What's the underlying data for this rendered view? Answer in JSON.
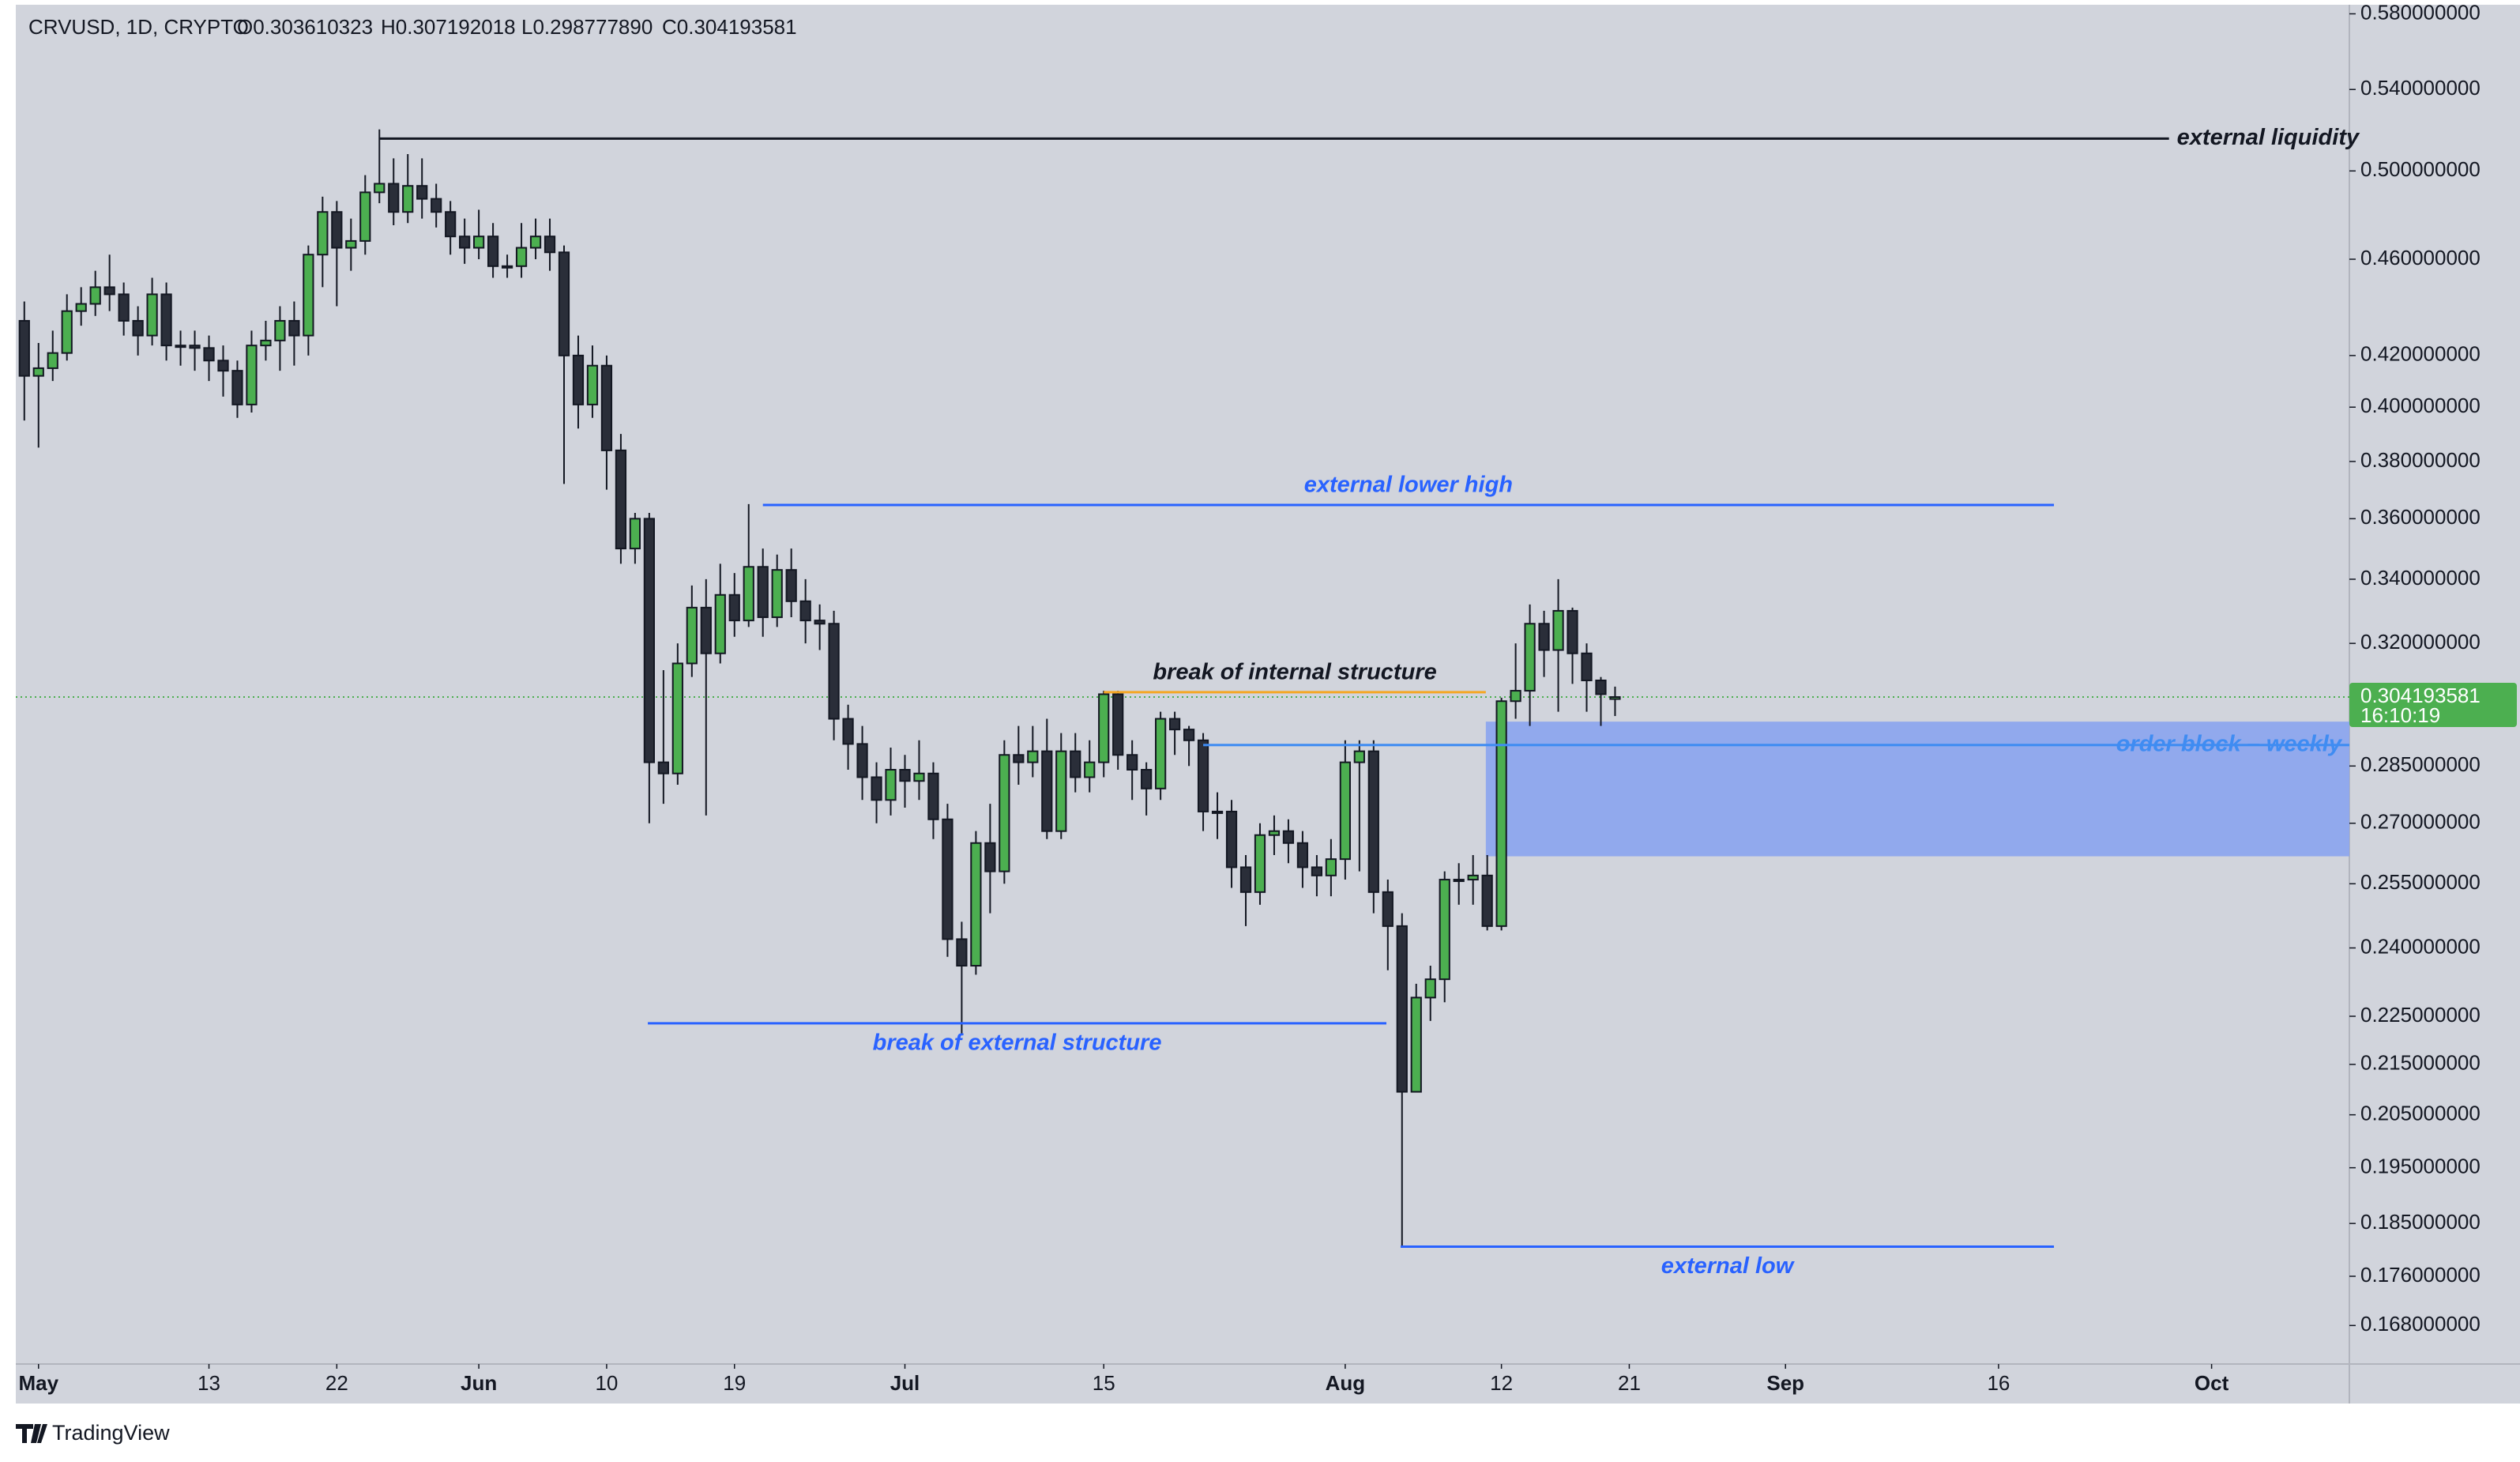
{
  "chart_data": {
    "type": "candlestick",
    "legend": {
      "symbol": "CRVUSD, 1D, CRYPTO",
      "open": "O0.303610323",
      "high": "H0.307192018",
      "low": "L0.298777890",
      "close": "C0.304193581"
    },
    "log_scale": true,
    "grid": false,
    "up_color": "#4caf50",
    "down_color": "#2a2e39",
    "wick_color": "#131722",
    "xlim": [
      -1.6,
      162.7
    ],
    "xticks": [
      {
        "value": 0,
        "label": "May"
      },
      {
        "value": 12,
        "label": "13"
      },
      {
        "value": 21,
        "label": "22"
      },
      {
        "value": 31,
        "label": "Jun"
      },
      {
        "value": 40,
        "label": "10"
      },
      {
        "value": 49,
        "label": "19"
      },
      {
        "value": 61,
        "label": "Jul"
      },
      {
        "value": 75,
        "label": "15"
      },
      {
        "value": 92,
        "label": "Aug"
      },
      {
        "value": 103,
        "label": "12"
      },
      {
        "value": 112,
        "label": "21"
      },
      {
        "value": 123,
        "label": "Sep"
      },
      {
        "value": 138,
        "label": "16"
      },
      {
        "value": 153,
        "label": "Oct"
      }
    ],
    "ylim": [
      0.162,
      0.585
    ],
    "yticks": [
      {
        "value": 0.58,
        "label": "0.580000000"
      },
      {
        "value": 0.54,
        "label": "0.540000000"
      },
      {
        "value": 0.5,
        "label": "0.500000000"
      },
      {
        "value": 0.46,
        "label": "0.460000000"
      },
      {
        "value": 0.42,
        "label": "0.420000000"
      },
      {
        "value": 0.4,
        "label": "0.400000000"
      },
      {
        "value": 0.38,
        "label": "0.380000000"
      },
      {
        "value": 0.36,
        "label": "0.360000000"
      },
      {
        "value": 0.34,
        "label": "0.340000000"
      },
      {
        "value": 0.32,
        "label": "0.320000000"
      },
      {
        "value": 0.285,
        "label": "0.285000000"
      },
      {
        "value": 0.27,
        "label": "0.270000000"
      },
      {
        "value": 0.255,
        "label": "0.255000000"
      },
      {
        "value": 0.24,
        "label": "0.240000000"
      },
      {
        "value": 0.225,
        "label": "0.225000000"
      },
      {
        "value": 0.215,
        "label": "0.215000000"
      },
      {
        "value": 0.205,
        "label": "0.205000000"
      },
      {
        "value": 0.195,
        "label": "0.195000000"
      },
      {
        "value": 0.185,
        "label": "0.185000000"
      },
      {
        "value": 0.176,
        "label": "0.176000000"
      },
      {
        "value": 0.168,
        "label": "0.168000000"
      }
    ],
    "candles": {
      "x": [
        -1,
        0,
        1,
        2,
        3,
        4,
        5,
        6,
        7,
        8,
        9,
        10,
        11,
        12,
        13,
        14,
        15,
        16,
        17,
        18,
        19,
        20,
        21,
        22,
        23,
        24,
        25,
        26,
        27,
        28,
        29,
        30,
        31,
        32,
        33,
        34,
        35,
        36,
        37,
        38,
        39,
        40,
        41,
        42,
        43,
        44,
        45,
        46,
        47,
        48,
        49,
        50,
        51,
        52,
        53,
        54,
        55,
        56,
        57,
        58,
        59,
        60,
        61,
        62,
        63,
        64,
        65,
        66,
        67,
        68,
        69,
        70,
        71,
        72,
        73,
        74,
        75,
        76,
        77,
        78,
        79,
        80,
        81,
        82,
        83,
        84,
        85,
        86,
        87,
        88,
        89,
        90,
        91,
        92,
        93,
        94,
        95,
        96,
        97,
        98,
        99,
        100,
        101,
        102,
        103,
        104,
        105,
        106,
        107,
        108,
        109,
        110,
        111
      ],
      "open": [
        0.434,
        0.412,
        0.415,
        0.421,
        0.438,
        0.441,
        0.448,
        0.445,
        0.434,
        0.428,
        0.445,
        0.424,
        0.424,
        0.423,
        0.418,
        0.414,
        0.401,
        0.424,
        0.426,
        0.434,
        0.428,
        0.462,
        0.481,
        0.465,
        0.468,
        0.49,
        0.494,
        0.481,
        0.493,
        0.487,
        0.481,
        0.47,
        0.465,
        0.47,
        0.457,
        0.457,
        0.465,
        0.47,
        0.463,
        0.42,
        0.401,
        0.416,
        0.384,
        0.35,
        0.36,
        0.286,
        0.283,
        0.314,
        0.331,
        0.317,
        0.335,
        0.327,
        0.344,
        0.328,
        0.343,
        0.333,
        0.327,
        0.326,
        0.298,
        0.291,
        0.282,
        0.276,
        0.284,
        0.281,
        0.283,
        0.271,
        0.242,
        0.236,
        0.265,
        0.258,
        0.288,
        0.286,
        0.289,
        0.268,
        0.289,
        0.282,
        0.286,
        0.305,
        0.288,
        0.284,
        0.279,
        0.298,
        0.295,
        0.292,
        0.273,
        0.273,
        0.259,
        0.253,
        0.267,
        0.268,
        0.265,
        0.259,
        0.257,
        0.261,
        0.286,
        0.289,
        0.253,
        0.245,
        0.2095,
        0.229,
        0.233,
        0.256,
        0.256,
        0.257,
        0.245,
        0.303,
        0.306,
        0.326,
        0.318,
        0.33,
        0.317,
        0.309,
        0.303610323
      ],
      "high": [
        0.442,
        0.425,
        0.43,
        0.445,
        0.448,
        0.455,
        0.462,
        0.45,
        0.44,
        0.452,
        0.45,
        0.43,
        0.43,
        0.428,
        0.424,
        0.418,
        0.43,
        0.434,
        0.44,
        0.442,
        0.466,
        0.488,
        0.486,
        0.478,
        0.498,
        0.52,
        0.506,
        0.508,
        0.506,
        0.494,
        0.486,
        0.478,
        0.482,
        0.476,
        0.462,
        0.476,
        0.478,
        0.478,
        0.466,
        0.428,
        0.424,
        0.42,
        0.39,
        0.362,
        0.362,
        0.312,
        0.32,
        0.338,
        0.34,
        0.345,
        0.342,
        0.365,
        0.35,
        0.348,
        0.35,
        0.34,
        0.332,
        0.33,
        0.302,
        0.296,
        0.286,
        0.29,
        0.288,
        0.292,
        0.286,
        0.275,
        0.246,
        0.268,
        0.275,
        0.292,
        0.296,
        0.296,
        0.298,
        0.294,
        0.294,
        0.292,
        0.306,
        0.306,
        0.292,
        0.286,
        0.3,
        0.3,
        0.296,
        0.294,
        0.278,
        0.276,
        0.262,
        0.27,
        0.272,
        0.271,
        0.268,
        0.262,
        0.266,
        0.292,
        0.292,
        0.292,
        0.256,
        0.248,
        0.232,
        0.236,
        0.258,
        0.26,
        0.262,
        0.262,
        0.304,
        0.32,
        0.332,
        0.33,
        0.34,
        0.331,
        0.32,
        0.31,
        0.307192018
      ],
      "low": [
        0.395,
        0.385,
        0.41,
        0.418,
        0.432,
        0.436,
        0.438,
        0.428,
        0.42,
        0.424,
        0.418,
        0.416,
        0.414,
        0.41,
        0.404,
        0.396,
        0.398,
        0.418,
        0.414,
        0.416,
        0.42,
        0.448,
        0.44,
        0.455,
        0.462,
        0.485,
        0.475,
        0.476,
        0.478,
        0.474,
        0.462,
        0.458,
        0.46,
        0.452,
        0.452,
        0.452,
        0.46,
        0.455,
        0.372,
        0.392,
        0.396,
        0.37,
        0.345,
        0.345,
        0.27,
        0.275,
        0.28,
        0.31,
        0.272,
        0.314,
        0.322,
        0.325,
        0.322,
        0.325,
        0.328,
        0.32,
        0.318,
        0.292,
        0.284,
        0.276,
        0.27,
        0.272,
        0.274,
        0.276,
        0.266,
        0.238,
        0.221,
        0.234,
        0.248,
        0.255,
        0.28,
        0.282,
        0.266,
        0.266,
        0.278,
        0.278,
        0.282,
        0.284,
        0.276,
        0.272,
        0.276,
        0.288,
        0.285,
        0.268,
        0.266,
        0.254,
        0.245,
        0.25,
        0.262,
        0.26,
        0.254,
        0.252,
        0.252,
        0.256,
        0.258,
        0.248,
        0.235,
        0.181,
        0.2095,
        0.224,
        0.228,
        0.25,
        0.25,
        0.244,
        0.244,
        0.298,
        0.296,
        0.31,
        0.3,
        0.308,
        0.3,
        0.296,
        0.29877789
      ],
      "close": [
        0.412,
        0.415,
        0.421,
        0.438,
        0.441,
        0.448,
        0.445,
        0.434,
        0.428,
        0.445,
        0.424,
        0.424,
        0.423,
        0.418,
        0.414,
        0.401,
        0.424,
        0.426,
        0.434,
        0.428,
        0.462,
        0.481,
        0.465,
        0.468,
        0.49,
        0.494,
        0.481,
        0.493,
        0.487,
        0.481,
        0.47,
        0.465,
        0.47,
        0.457,
        0.457,
        0.465,
        0.47,
        0.463,
        0.42,
        0.401,
        0.416,
        0.384,
        0.35,
        0.36,
        0.286,
        0.283,
        0.314,
        0.331,
        0.317,
        0.335,
        0.327,
        0.344,
        0.328,
        0.343,
        0.333,
        0.327,
        0.326,
        0.298,
        0.291,
        0.282,
        0.276,
        0.284,
        0.281,
        0.283,
        0.271,
        0.242,
        0.236,
        0.265,
        0.258,
        0.288,
        0.286,
        0.289,
        0.268,
        0.289,
        0.282,
        0.286,
        0.305,
        0.288,
        0.284,
        0.279,
        0.298,
        0.295,
        0.292,
        0.273,
        0.273,
        0.259,
        0.253,
        0.267,
        0.268,
        0.265,
        0.259,
        0.257,
        0.261,
        0.286,
        0.289,
        0.253,
        0.245,
        0.2095,
        0.229,
        0.233,
        0.256,
        0.256,
        0.257,
        0.245,
        0.303,
        0.306,
        0.326,
        0.318,
        0.33,
        0.317,
        0.309,
        0.305,
        0.304193581
      ]
    },
    "last_price": {
      "value": 0.304193581,
      "countdown": "16:10:19",
      "color": "#4caf50"
    },
    "zone": {
      "values": [
        0.2617,
        0.2972
      ],
      "x": [
        101.9,
        162.7
      ],
      "color": "#8aa4ee"
    },
    "annotations": [
      {
        "label": "external liquidity",
        "value": 0.5155,
        "x": [
          24,
          150
        ],
        "color": "#131722",
        "label_color": "#131722",
        "label_position": "after"
      },
      {
        "label": "external lower high",
        "value": 0.3647,
        "x": [
          51,
          141.9
        ],
        "color": "#2962ff",
        "label_color": "#2962ff",
        "label_position": "above"
      },
      {
        "label": "break of internal structure",
        "value": 0.3056,
        "x": [
          75,
          101.9
        ],
        "color": "#f5a623",
        "label_color": "#131722",
        "label_position": "above"
      },
      {
        "label": "order block – weekly",
        "value": 0.2907,
        "x": [
          82,
          162.7
        ],
        "color": "#3f8cf2",
        "label_color": "#3f8cf2",
        "label_position": "inside-end"
      },
      {
        "label": "break of external structure",
        "value": 0.2235,
        "x": [
          42.9,
          94.9
        ],
        "color": "#2962ff",
        "label_color": "#2962ff",
        "label_position": "below"
      },
      {
        "label": "external low",
        "value": 0.181,
        "x": [
          95.9,
          141.9
        ],
        "color": "#2962ff",
        "label_color": "#2962ff",
        "label_position": "below"
      }
    ],
    "brand": "TradingView"
  }
}
